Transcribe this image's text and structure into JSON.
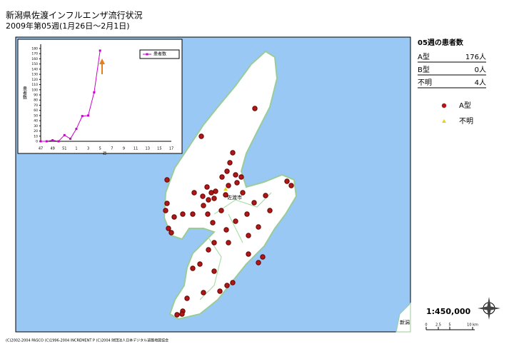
{
  "header": {
    "title": "新潟県佐渡インフルエンザ流行状況",
    "subtitle": "2009年第05週(1月26日〜2月1日)"
  },
  "summary": {
    "title": "05週の患者数",
    "rows": [
      [
        "A型",
        "176人"
      ],
      [
        "B型",
        "0人"
      ],
      [
        "不明",
        "4人"
      ]
    ]
  },
  "legend": [
    {
      "label": "A型",
      "color": "#b01818"
    },
    {
      "label": "不明",
      "color": "#e8d020"
    }
  ],
  "map": {
    "city_label": "佐渡市",
    "corner_label": "新潟",
    "scale": "1:450,000",
    "scale_bar": [
      "0",
      "2.5",
      "5",
      "10 km"
    ],
    "copyright": "(C)2002-2004 PASCO (C)1996-2004 INCREMENT P (C)2004 財団法人日本デジタル道路地図協会"
  },
  "chart_data": {
    "type": "line",
    "x_label": "週",
    "y_label": "患者数",
    "categories": [
      "47",
      null,
      "49",
      null,
      "51",
      null,
      "1",
      null,
      "3",
      null,
      "5",
      null,
      "7",
      null,
      "9",
      null,
      "11",
      null,
      "13",
      null,
      "15",
      null,
      "17"
    ],
    "series": [
      {
        "name": "患者数",
        "color": "#cc00cc",
        "values": [
          0,
          0,
          2,
          0,
          12,
          5,
          24,
          49,
          50,
          95,
          176,
          null,
          null,
          null,
          null,
          null,
          null,
          null,
          null,
          null,
          null,
          null,
          null
        ]
      }
    ],
    "ylim": [
      0,
      180
    ],
    "yticks": [
      0,
      10,
      20,
      30,
      40,
      50,
      60,
      70,
      80,
      90,
      100,
      110,
      120,
      130,
      140,
      150,
      160,
      170,
      180
    ]
  }
}
